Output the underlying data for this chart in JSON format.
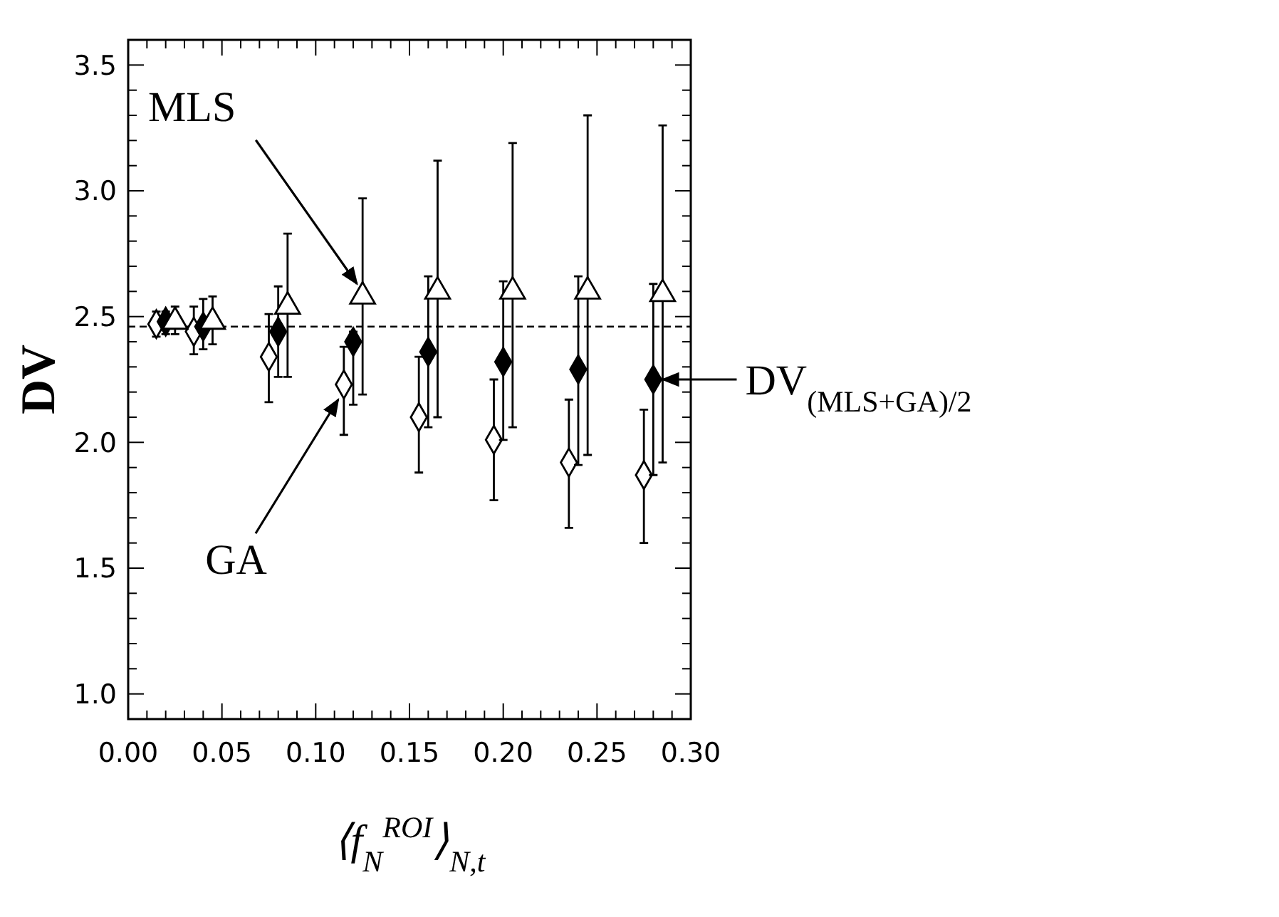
{
  "chart_data": {
    "type": "scatter",
    "xlabel": "⟨f$_{N}$$^{ROI}$⟩$_{N,t}$",
    "ylabel": "DV",
    "xlim": [
      0,
      0.3
    ],
    "ylim": [
      0.9,
      3.6
    ],
    "xticks": [
      {
        "value": 0,
        "label": "0.00"
      },
      {
        "value": 0.01,
        "label": null
      },
      {
        "value": 0.02,
        "label": null
      },
      {
        "value": 0.03,
        "label": null
      },
      {
        "value": 0.04,
        "label": null
      },
      {
        "value": 0.05,
        "label": "0.05"
      },
      {
        "value": 0.06,
        "label": null
      },
      {
        "value": 0.07,
        "label": null
      },
      {
        "value": 0.08,
        "label": null
      },
      {
        "value": 0.09,
        "label": null
      },
      {
        "value": 0.1,
        "label": "0.10"
      },
      {
        "value": 0.11,
        "label": null
      },
      {
        "value": 0.12,
        "label": null
      },
      {
        "value": 0.13,
        "label": null
      },
      {
        "value": 0.14,
        "label": null
      },
      {
        "value": 0.15,
        "label": "0.15"
      },
      {
        "value": 0.16,
        "label": null
      },
      {
        "value": 0.17,
        "label": null
      },
      {
        "value": 0.18,
        "label": null
      },
      {
        "value": 0.19,
        "label": null
      },
      {
        "value": 0.2,
        "label": "0.20"
      },
      {
        "value": 0.21,
        "label": null
      },
      {
        "value": 0.22,
        "label": null
      },
      {
        "value": 0.23,
        "label": null
      },
      {
        "value": 0.24,
        "label": null
      },
      {
        "value": 0.25,
        "label": "0.25"
      },
      {
        "value": 0.26,
        "label": null
      },
      {
        "value": 0.27,
        "label": null
      },
      {
        "value": 0.28,
        "label": null
      },
      {
        "value": 0.29,
        "label": null
      },
      {
        "value": 0.3,
        "label": "0.30"
      }
    ],
    "yticks": [
      {
        "value": 1,
        "label": "1.0"
      },
      {
        "value": 1.1,
        "label": null
      },
      {
        "value": 1.2,
        "label": null
      },
      {
        "value": 1.3,
        "label": null
      },
      {
        "value": 1.4,
        "label": null
      },
      {
        "value": 1.5,
        "label": "1.5"
      },
      {
        "value": 1.6,
        "label": null
      },
      {
        "value": 1.7,
        "label": null
      },
      {
        "value": 1.8,
        "label": null
      },
      {
        "value": 1.9,
        "label": null
      },
      {
        "value": 2,
        "label": "2.0"
      },
      {
        "value": 2.1,
        "label": null
      },
      {
        "value": 2.2,
        "label": null
      },
      {
        "value": 2.3,
        "label": null
      },
      {
        "value": 2.4,
        "label": null
      },
      {
        "value": 2.5,
        "label": "2.5"
      },
      {
        "value": 2.6,
        "label": null
      },
      {
        "value": 2.7,
        "label": null
      },
      {
        "value": 2.8,
        "label": null
      },
      {
        "value": 2.9,
        "label": null
      },
      {
        "value": 3,
        "label": "3.0"
      },
      {
        "value": 3.1,
        "label": null
      },
      {
        "value": 3.2,
        "label": null
      },
      {
        "value": 3.3,
        "label": null
      },
      {
        "value": 3.4,
        "label": null
      },
      {
        "value": 3.5,
        "label": "3.5"
      }
    ],
    "series": [
      {
        "marker": "diamond",
        "color": "#ffffff",
        "x": [
          0.015,
          0.035,
          0.075,
          0.115,
          0.155,
          0.195,
          0.235,
          0.275
        ],
        "values": [
          2.47,
          2.44,
          2.34,
          2.23,
          2.1,
          2.01,
          1.92,
          1.87
        ],
        "errors": [
          [
            2.42,
            2.52
          ],
          [
            2.35,
            2.54
          ],
          [
            2.16,
            2.51
          ],
          [
            2.03,
            2.38
          ],
          [
            1.88,
            2.34
          ],
          [
            1.77,
            2.25
          ],
          [
            1.66,
            2.17
          ],
          [
            1.6,
            2.13
          ]
        ]
      },
      {
        "marker": "diamond",
        "color": "#000000",
        "x": [
          0.02,
          0.04,
          0.08,
          0.12,
          0.16,
          0.2,
          0.24,
          0.28
        ],
        "values": [
          2.48,
          2.46,
          2.44,
          2.4,
          2.36,
          2.32,
          2.29,
          2.25
        ],
        "errors": [
          [
            2.43,
            2.52
          ],
          [
            2.37,
            2.57
          ],
          [
            2.26,
            2.62
          ],
          [
            2.15,
            2.44
          ],
          [
            2.06,
            2.66
          ],
          [
            2.01,
            2.64
          ],
          [
            1.91,
            2.66
          ],
          [
            1.87,
            2.63
          ]
        ]
      },
      {
        "marker": "triangle",
        "color": "#ffffff",
        "x": [
          0.025,
          0.045,
          0.085,
          0.125,
          0.165,
          0.205,
          0.245,
          0.285
        ],
        "values": [
          2.48,
          2.48,
          2.54,
          2.58,
          2.6,
          2.6,
          2.6,
          2.59
        ],
        "errors": [
          [
            2.43,
            2.54
          ],
          [
            2.39,
            2.58
          ],
          [
            2.26,
            2.83
          ],
          [
            2.19,
            2.97
          ],
          [
            2.1,
            3.12
          ],
          [
            2.06,
            3.19
          ],
          [
            1.95,
            3.3
          ],
          [
            1.92,
            3.26
          ]
        ]
      }
    ],
    "ref_lines": [
      {
        "axis": "y",
        "value": 2.46,
        "line_style": "dashed"
      }
    ],
    "annotations": [
      {
        "text": "MLS",
        "x": 0.122,
        "y": 2.63
      },
      {
        "text": "GA",
        "x": 0.112,
        "y": 2.17
      },
      {
        "text": "DV$_{(MLS+GA)/2}$",
        "x": 0.285,
        "y": 2.25
      }
    ]
  }
}
